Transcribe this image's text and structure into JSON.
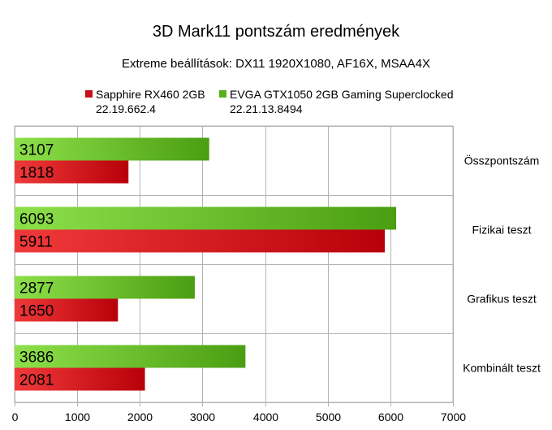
{
  "title": "3D Mark11 pontszám eredmények",
  "subtitle": "Extreme beállítások: DX11 1920X1080, AF16X, MSAA4X",
  "legend": [
    {
      "name": "Sapphire RX460 2GB",
      "detail": "22.19.662.4",
      "color": "#c8101a"
    },
    {
      "name": "EVGA GTX1050 2GB  Gaming Superclocked",
      "detail": "22.21.13.8494",
      "color": "#56b01a"
    }
  ],
  "chart_data": {
    "type": "bar",
    "orientation": "horizontal",
    "title": "3D Mark11 pontszám eredmények",
    "subtitle": "Extreme beállítások: DX11 1920X1080, AF16X, MSAA4X",
    "categories": [
      "Összpontszám",
      "Fizikai teszt",
      "Grafikus teszt",
      "Kombinált teszt"
    ],
    "series": [
      {
        "name": "EVGA GTX1050 2GB  Gaming Superclocked",
        "values": [
          3107,
          6093,
          2877,
          3686
        ],
        "color": "#56b01a"
      },
      {
        "name": "Sapphire RX460 2GB",
        "values": [
          1818,
          5911,
          1650,
          2081
        ],
        "color": "#c8101a"
      }
    ],
    "xlim": [
      0,
      7000
    ],
    "xticks": [
      "0",
      "1000",
      "2000",
      "3000",
      "4000",
      "5000",
      "6000",
      "7000"
    ],
    "grid": true,
    "legend_position": "top"
  }
}
